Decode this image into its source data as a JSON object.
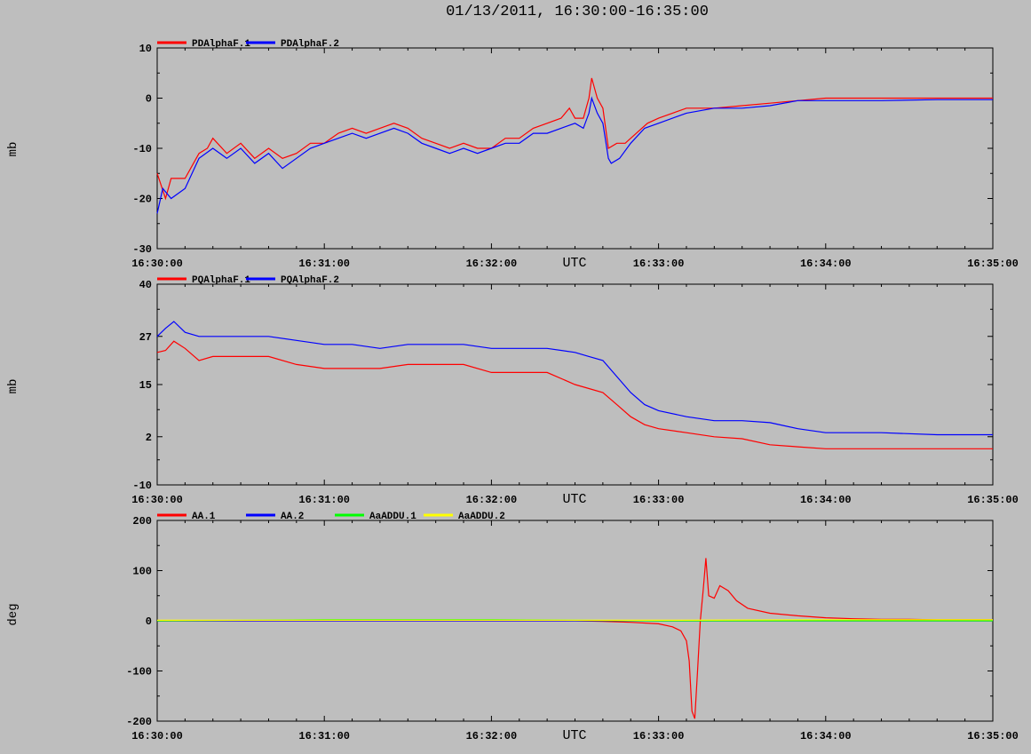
{
  "title": "01/13/2011, 16:30:00-16:35:00",
  "colors": {
    "background": "#bebebe",
    "red": "#ff0000",
    "blue": "#0000ff",
    "green": "#00ff00",
    "yellow": "#ffff00"
  },
  "chart_data": [
    {
      "type": "line",
      "ylabel": "mb",
      "xlabel": "UTC",
      "xlim": [
        "16:30:00",
        "16:35:00"
      ],
      "ylim": [
        -30,
        10
      ],
      "y_ticks": [
        "10",
        "0",
        "-10",
        "-20",
        "-30"
      ],
      "x_ticks": [
        "16:30:00",
        "16:31:00",
        "16:32:00",
        "16:33:00",
        "16:34:00",
        "16:35:00"
      ],
      "legend_position": "top-left",
      "series": [
        {
          "name": "PDAlphaF.1",
          "color": "#ff0000",
          "points": [
            [
              0,
              -15
            ],
            [
              3,
              -20
            ],
            [
              5,
              -16
            ],
            [
              10,
              -16
            ],
            [
              15,
              -11
            ],
            [
              18,
              -10
            ],
            [
              20,
              -8
            ],
            [
              25,
              -11
            ],
            [
              30,
              -9
            ],
            [
              35,
              -12
            ],
            [
              40,
              -10
            ],
            [
              45,
              -12
            ],
            [
              50,
              -11
            ],
            [
              55,
              -9
            ],
            [
              60,
              -9
            ],
            [
              65,
              -7
            ],
            [
              70,
              -6
            ],
            [
              75,
              -7
            ],
            [
              80,
              -6
            ],
            [
              85,
              -5
            ],
            [
              90,
              -6
            ],
            [
              95,
              -8
            ],
            [
              100,
              -9
            ],
            [
              105,
              -10
            ],
            [
              110,
              -9
            ],
            [
              115,
              -10
            ],
            [
              120,
              -10
            ],
            [
              125,
              -8
            ],
            [
              130,
              -8
            ],
            [
              135,
              -6
            ],
            [
              140,
              -5
            ],
            [
              145,
              -4
            ],
            [
              148,
              -2
            ],
            [
              150,
              -4
            ],
            [
              153,
              -4
            ],
            [
              155,
              0
            ],
            [
              156,
              4
            ],
            [
              158,
              0
            ],
            [
              160,
              -2
            ],
            [
              162,
              -10
            ],
            [
              165,
              -9
            ],
            [
              168,
              -9
            ],
            [
              172,
              -7
            ],
            [
              176,
              -5
            ],
            [
              180,
              -4
            ],
            [
              190,
              -2
            ],
            [
              200,
              -2
            ],
            [
              210,
              -1.5
            ],
            [
              220,
              -1
            ],
            [
              230,
              -0.5
            ],
            [
              240,
              0
            ],
            [
              260,
              0
            ],
            [
              280,
              0
            ],
            [
              300,
              0
            ]
          ]
        },
        {
          "name": "PDAlphaF.2",
          "color": "#0000ff",
          "points": [
            [
              0,
              -23
            ],
            [
              2,
              -18
            ],
            [
              5,
              -20
            ],
            [
              10,
              -18
            ],
            [
              15,
              -12
            ],
            [
              20,
              -10
            ],
            [
              25,
              -12
            ],
            [
              30,
              -10
            ],
            [
              35,
              -13
            ],
            [
              40,
              -11
            ],
            [
              45,
              -14
            ],
            [
              50,
              -12
            ],
            [
              55,
              -10
            ],
            [
              60,
              -9
            ],
            [
              65,
              -8
            ],
            [
              70,
              -7
            ],
            [
              75,
              -8
            ],
            [
              80,
              -7
            ],
            [
              85,
              -6
            ],
            [
              90,
              -7
            ],
            [
              95,
              -9
            ],
            [
              100,
              -10
            ],
            [
              105,
              -11
            ],
            [
              110,
              -10
            ],
            [
              115,
              -11
            ],
            [
              120,
              -10
            ],
            [
              125,
              -9
            ],
            [
              130,
              -9
            ],
            [
              135,
              -7
            ],
            [
              140,
              -7
            ],
            [
              145,
              -6
            ],
            [
              150,
              -5
            ],
            [
              153,
              -6
            ],
            [
              155,
              -3
            ],
            [
              156,
              0
            ],
            [
              158,
              -3
            ],
            [
              160,
              -5
            ],
            [
              162,
              -12
            ],
            [
              163,
              -13
            ],
            [
              166,
              -12
            ],
            [
              170,
              -9
            ],
            [
              175,
              -6
            ],
            [
              180,
              -5
            ],
            [
              190,
              -3
            ],
            [
              200,
              -2
            ],
            [
              210,
              -2
            ],
            [
              220,
              -1.5
            ],
            [
              230,
              -0.5
            ],
            [
              240,
              -0.5
            ],
            [
              260,
              -0.5
            ],
            [
              280,
              -0.3
            ],
            [
              300,
              -0.3
            ]
          ]
        }
      ]
    },
    {
      "type": "line",
      "ylabel": "mb",
      "xlabel": "UTC",
      "xlim": [
        "16:30:00",
        "16:35:00"
      ],
      "ylim": [
        -10,
        40
      ],
      "y_ticks": [
        "40",
        "27",
        "15",
        "2",
        "-10"
      ],
      "x_ticks": [
        "16:30:00",
        "16:31:00",
        "16:32:00",
        "16:33:00",
        "16:34:00",
        "16:35:00"
      ],
      "legend_position": "top-left",
      "series": [
        {
          "name": "PQAlphaF.1",
          "color": "#ff0000",
          "points": [
            [
              0,
              23
            ],
            [
              3,
              23.5
            ],
            [
              6,
              25.8
            ],
            [
              10,
              24
            ],
            [
              15,
              21
            ],
            [
              20,
              22
            ],
            [
              30,
              22
            ],
            [
              40,
              22
            ],
            [
              50,
              20
            ],
            [
              60,
              19
            ],
            [
              70,
              19
            ],
            [
              80,
              19
            ],
            [
              90,
              20
            ],
            [
              100,
              20
            ],
            [
              110,
              20
            ],
            [
              120,
              18
            ],
            [
              130,
              18
            ],
            [
              140,
              18
            ],
            [
              150,
              15
            ],
            [
              155,
              14
            ],
            [
              160,
              13
            ],
            [
              165,
              10
            ],
            [
              170,
              7
            ],
            [
              175,
              5
            ],
            [
              180,
              4
            ],
            [
              190,
              3
            ],
            [
              200,
              2
            ],
            [
              210,
              1.5
            ],
            [
              220,
              0
            ],
            [
              230,
              -0.5
            ],
            [
              240,
              -1
            ],
            [
              260,
              -1
            ],
            [
              280,
              -1
            ],
            [
              300,
              -1
            ]
          ]
        },
        {
          "name": "PQAlphaF.2",
          "color": "#0000ff",
          "points": [
            [
              0,
              27
            ],
            [
              3,
              29
            ],
            [
              6,
              30.7
            ],
            [
              10,
              28
            ],
            [
              15,
              27
            ],
            [
              20,
              27
            ],
            [
              30,
              27
            ],
            [
              40,
              27
            ],
            [
              50,
              26
            ],
            [
              60,
              25
            ],
            [
              70,
              25
            ],
            [
              80,
              24
            ],
            [
              90,
              25
            ],
            [
              100,
              25
            ],
            [
              110,
              25
            ],
            [
              120,
              24
            ],
            [
              130,
              24
            ],
            [
              140,
              24
            ],
            [
              150,
              23
            ],
            [
              155,
              22
            ],
            [
              160,
              21
            ],
            [
              165,
              17
            ],
            [
              170,
              13
            ],
            [
              175,
              10
            ],
            [
              180,
              8.5
            ],
            [
              190,
              7
            ],
            [
              200,
              6
            ],
            [
              210,
              6
            ],
            [
              220,
              5.5
            ],
            [
              230,
              4
            ],
            [
              240,
              3
            ],
            [
              260,
              3
            ],
            [
              280,
              2.5
            ],
            [
              300,
              2.5
            ]
          ]
        }
      ]
    },
    {
      "type": "line",
      "ylabel": "deg",
      "xlabel": "UTC",
      "xlim": [
        "16:30:00",
        "16:35:00"
      ],
      "ylim": [
        -200,
        200
      ],
      "y_ticks": [
        "200",
        "100",
        "0",
        "-100",
        "-200"
      ],
      "x_ticks": [
        "16:30:00",
        "16:31:00",
        "16:32:00",
        "16:33:00",
        "16:34:00",
        "16:35:00"
      ],
      "legend_position": "top-left",
      "series": [
        {
          "name": "AA.1",
          "color": "#ff0000",
          "points": [
            [
              0,
              0
            ],
            [
              60,
              0
            ],
            [
              120,
              0
            ],
            [
              150,
              0
            ],
            [
              160,
              -1
            ],
            [
              170,
              -3
            ],
            [
              180,
              -6
            ],
            [
              185,
              -12
            ],
            [
              188,
              -20
            ],
            [
              190,
              -40
            ],
            [
              191,
              -80
            ],
            [
              192,
              -180
            ],
            [
              193,
              -195
            ],
            [
              194,
              -100
            ],
            [
              195,
              0
            ],
            [
              196,
              60
            ],
            [
              197,
              125
            ],
            [
              198,
              50
            ],
            [
              200,
              45
            ],
            [
              202,
              70
            ],
            [
              205,
              60
            ],
            [
              208,
              40
            ],
            [
              212,
              25
            ],
            [
              220,
              15
            ],
            [
              230,
              10
            ],
            [
              240,
              6
            ],
            [
              250,
              4
            ],
            [
              260,
              3
            ],
            [
              270,
              3
            ],
            [
              280,
              2
            ],
            [
              300,
              2
            ]
          ]
        },
        {
          "name": "AA.2",
          "color": "#0000ff",
          "points": [
            [
              0,
              0
            ],
            [
              60,
              0
            ],
            [
              120,
              0
            ],
            [
              180,
              0
            ],
            [
              240,
              0
            ],
            [
              300,
              0
            ]
          ]
        },
        {
          "name": "AaADDU.1",
          "color": "#00ff00",
          "points": [
            [
              0,
              0
            ],
            [
              60,
              2
            ],
            [
              120,
              2
            ],
            [
              180,
              0
            ],
            [
              240,
              0
            ],
            [
              300,
              0
            ]
          ]
        },
        {
          "name": "AaADDU.2",
          "color": "#ffff00",
          "points": [
            [
              0,
              1
            ],
            [
              60,
              1
            ],
            [
              120,
              1
            ],
            [
              180,
              1
            ],
            [
              240,
              2
            ],
            [
              300,
              2
            ]
          ]
        }
      ]
    }
  ]
}
